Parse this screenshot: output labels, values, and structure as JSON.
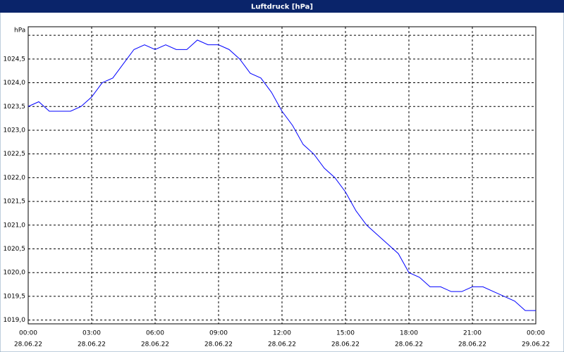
{
  "chart_data": {
    "type": "line",
    "title": "Luftdruck [hPa]",
    "x": [
      0,
      0.5,
      1,
      1.5,
      2,
      2.5,
      3,
      3.5,
      4,
      4.5,
      5,
      5.5,
      6,
      6.5,
      7,
      7.5,
      8,
      8.5,
      9,
      9.5,
      10,
      10.5,
      11,
      11.5,
      12,
      12.5,
      13,
      13.5,
      14,
      14.5,
      15,
      15.5,
      16,
      16.5,
      17,
      17.5,
      18,
      18.5,
      19,
      19.5,
      20,
      20.5,
      21,
      21.5,
      22,
      22.5,
      23,
      23.5,
      24
    ],
    "series": [
      {
        "name": "Luftdruck",
        "color": "#0000ff",
        "values": [
          1023.5,
          1023.6,
          1023.4,
          1023.4,
          1023.4,
          1023.5,
          1023.7,
          1024.0,
          1024.1,
          1024.4,
          1024.7,
          1024.8,
          1024.7,
          1024.8,
          1024.7,
          1024.7,
          1024.9,
          1024.8,
          1024.8,
          1024.7,
          1024.5,
          1024.2,
          1024.1,
          1023.8,
          1023.4,
          1023.1,
          1022.7,
          1022.5,
          1022.2,
          1022.0,
          1021.7,
          1021.3,
          1021.0,
          1020.8,
          1020.6,
          1020.4,
          1020.0,
          1019.9,
          1019.7,
          1019.7,
          1019.6,
          1019.6,
          1019.7,
          1019.7,
          1019.6,
          1019.5,
          1019.4,
          1019.2,
          1019.2
        ]
      }
    ],
    "xlim": [
      0,
      24
    ],
    "xticks": [
      {
        "value": 0,
        "label": "00:00",
        "date": "28.06.22"
      },
      {
        "value": 3,
        "label": "03:00",
        "date": "28.06.22"
      },
      {
        "value": 6,
        "label": "06:00",
        "date": "28.06.22"
      },
      {
        "value": 9,
        "label": "09:00",
        "date": "28.06.22"
      },
      {
        "value": 12,
        "label": "12:00",
        "date": "28.06.22"
      },
      {
        "value": 15,
        "label": "15:00",
        "date": "28.06.22"
      },
      {
        "value": 18,
        "label": "18:00",
        "date": "28.06.22"
      },
      {
        "value": 21,
        "label": "21:00",
        "date": "28.06.22"
      },
      {
        "value": 24,
        "label": "00:00",
        "date": "29.06.22"
      }
    ],
    "ylim": [
      1018.92,
      1025.18
    ],
    "yticks": [
      {
        "value": 1019,
        "label": "1019,0"
      },
      {
        "value": 1019.5,
        "label": "1019,5"
      },
      {
        "value": 1020,
        "label": "1020,0"
      },
      {
        "value": 1020.5,
        "label": "1020,5"
      },
      {
        "value": 1021,
        "label": "1021,0"
      },
      {
        "value": 1021.5,
        "label": "1021,5"
      },
      {
        "value": 1022,
        "label": "1022,0"
      },
      {
        "value": 1022.5,
        "label": "1022,5"
      },
      {
        "value": 1023,
        "label": "1023,0"
      },
      {
        "value": 1023.5,
        "label": "1023,5"
      },
      {
        "value": 1024,
        "label": "1024,0"
      },
      {
        "value": 1024.5,
        "label": "1024,5"
      },
      {
        "value": 1025,
        "label": "hPa"
      }
    ],
    "grid": true
  }
}
